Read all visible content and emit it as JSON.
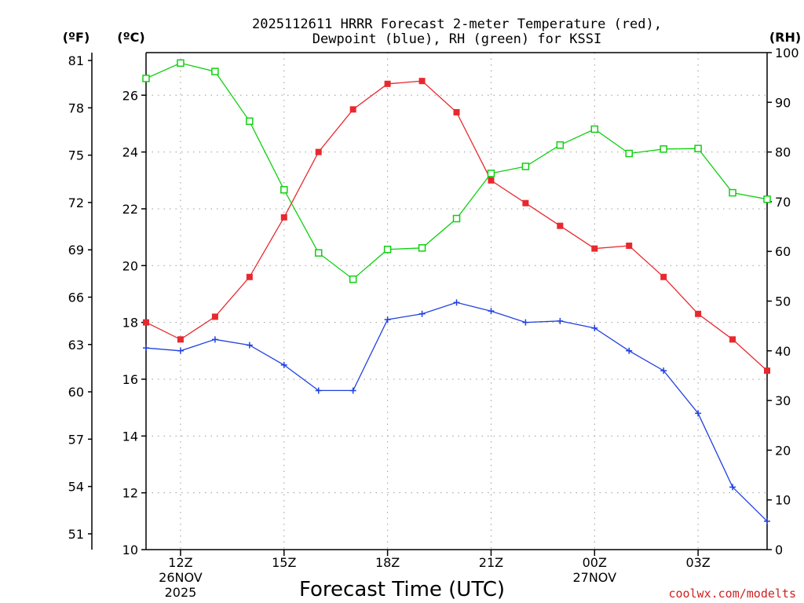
{
  "chart_data": {
    "type": "line",
    "title_lines": [
      "2025112611 HRRR Forecast 2-meter Temperature (red),",
      "Dewpoint (blue), RH (green) for KSSI"
    ],
    "xlabel": "Forecast Time (UTC)",
    "credit": "coolwx.com/modelts",
    "x": [
      11,
      12,
      13,
      14,
      15,
      16,
      17,
      18,
      19,
      20,
      21,
      22,
      23,
      24,
      25,
      26,
      27,
      28,
      29
    ],
    "x_ticks": [
      {
        "x": 12,
        "lines": [
          "12Z",
          "26NOV",
          "2025"
        ]
      },
      {
        "x": 15,
        "lines": [
          "15Z"
        ]
      },
      {
        "x": 18,
        "lines": [
          "18Z"
        ]
      },
      {
        "x": 21,
        "lines": [
          "21Z"
        ]
      },
      {
        "x": 24,
        "lines": [
          "00Z",
          "27NOV"
        ]
      },
      {
        "x": 27,
        "lines": [
          "03Z"
        ]
      }
    ],
    "xlim": [
      11,
      29
    ],
    "celsius_axis": {
      "unit": "(ºC)",
      "ylim": [
        10,
        27.5
      ],
      "ticks": [
        10,
        12,
        14,
        16,
        18,
        20,
        22,
        24,
        26
      ]
    },
    "fahrenheit_axis": {
      "unit": "(ºF)",
      "ticks": [
        51,
        54,
        57,
        60,
        63,
        66,
        69,
        72,
        75,
        78,
        81
      ]
    },
    "rh_axis": {
      "unit": "(RH)",
      "ylim": [
        0,
        100
      ],
      "ticks": [
        0,
        10,
        20,
        30,
        40,
        50,
        60,
        70,
        80,
        90,
        100
      ]
    },
    "series": [
      {
        "name": "Temperature",
        "axis": "celsius",
        "color": "#e8282e",
        "marker": "filled-square",
        "values": [
          18.0,
          17.4,
          18.2,
          19.6,
          21.7,
          24.0,
          25.5,
          26.4,
          26.5,
          25.4,
          23.0,
          22.2,
          21.4,
          20.6,
          20.7,
          19.6,
          18.3,
          17.4,
          16.3
        ]
      },
      {
        "name": "Dewpoint",
        "axis": "celsius",
        "color": "#2040e0",
        "marker": "plus",
        "values": [
          17.1,
          17.0,
          17.4,
          17.2,
          16.5,
          15.6,
          15.6,
          18.1,
          18.3,
          18.7,
          18.4,
          18.0,
          18.05,
          17.8,
          17.0,
          16.3,
          14.8,
          12.2,
          11.0
        ]
      },
      {
        "name": "RH",
        "axis": "rh",
        "color": "#10d010",
        "marker": "open-square",
        "values": [
          94.8,
          97.9,
          96.2,
          86.2,
          72.4,
          59.7,
          54.4,
          60.4,
          60.7,
          66.6,
          75.7,
          77.1,
          81.4,
          84.6,
          79.7,
          80.6,
          80.7,
          71.8,
          70.5
        ]
      }
    ]
  }
}
